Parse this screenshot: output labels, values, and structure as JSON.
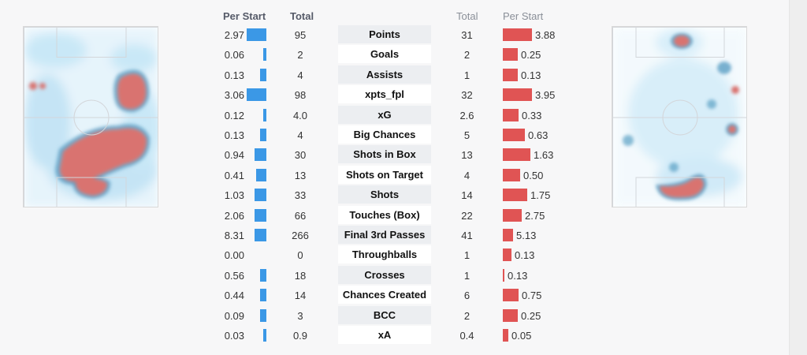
{
  "colors": {
    "left_bar": "#3b98e6",
    "right_bar": "#e05454",
    "heat_hot": "#d9736f",
    "heat_cool": "#bfe2f5"
  },
  "left_player": {
    "header_per_start": "Per Start",
    "header_total": "Total",
    "heatmap_icon": "pitch-heatmap-icon"
  },
  "right_player": {
    "header_total": "Total",
    "header_per_start": "Per Start",
    "heatmap_icon": "pitch-heatmap-icon"
  },
  "stats": [
    {
      "label": "Points",
      "left_per_start": "2.97",
      "left_total": "95",
      "right_total": "31",
      "right_per_start": "3.88"
    },
    {
      "label": "Goals",
      "left_per_start": "0.06",
      "left_total": "2",
      "right_total": "2",
      "right_per_start": "0.25"
    },
    {
      "label": "Assists",
      "left_per_start": "0.13",
      "left_total": "4",
      "right_total": "1",
      "right_per_start": "0.13"
    },
    {
      "label": "xpts_fpl",
      "left_per_start": "3.06",
      "left_total": "98",
      "right_total": "32",
      "right_per_start": "3.95"
    },
    {
      "label": "xG",
      "left_per_start": "0.12",
      "left_total": "4.0",
      "right_total": "2.6",
      "right_per_start": "0.33"
    },
    {
      "label": "Big Chances",
      "left_per_start": "0.13",
      "left_total": "4",
      "right_total": "5",
      "right_per_start": "0.63"
    },
    {
      "label": "Shots in Box",
      "left_per_start": "0.94",
      "left_total": "30",
      "right_total": "13",
      "right_per_start": "1.63"
    },
    {
      "label": "Shots on Target",
      "left_per_start": "0.41",
      "left_total": "13",
      "right_total": "4",
      "right_per_start": "0.50"
    },
    {
      "label": "Shots",
      "left_per_start": "1.03",
      "left_total": "33",
      "right_total": "14",
      "right_per_start": "1.75"
    },
    {
      "label": "Touches (Box)",
      "left_per_start": "2.06",
      "left_total": "66",
      "right_total": "22",
      "right_per_start": "2.75"
    },
    {
      "label": "Final 3rd Passes",
      "left_per_start": "8.31",
      "left_total": "266",
      "right_total": "41",
      "right_per_start": "5.13"
    },
    {
      "label": "Throughballs",
      "left_per_start": "0.00",
      "left_total": "0",
      "right_total": "1",
      "right_per_start": "0.13"
    },
    {
      "label": "Crosses",
      "left_per_start": "0.56",
      "left_total": "18",
      "right_total": "1",
      "right_per_start": "0.13"
    },
    {
      "label": "Chances Created",
      "left_per_start": "0.44",
      "left_total": "14",
      "right_total": "6",
      "right_per_start": "0.75"
    },
    {
      "label": "BCC",
      "left_per_start": "0.09",
      "left_total": "3",
      "right_total": "2",
      "right_per_start": "0.25"
    },
    {
      "label": "xA",
      "left_per_start": "0.03",
      "left_total": "0.9",
      "right_total": "0.4",
      "right_per_start": "0.05"
    }
  ],
  "bar_fill": {
    "left": [
      1.0,
      0.15,
      0.3,
      1.0,
      0.15,
      0.3,
      0.6,
      0.5,
      0.6,
      0.6,
      0.6,
      0.0,
      0.3,
      0.3,
      0.3,
      0.15
    ],
    "right": [
      1.0,
      0.5,
      0.5,
      1.0,
      0.55,
      0.75,
      0.95,
      0.6,
      0.85,
      0.65,
      0.35,
      0.3,
      0.05,
      0.55,
      0.5,
      0.2
    ]
  }
}
